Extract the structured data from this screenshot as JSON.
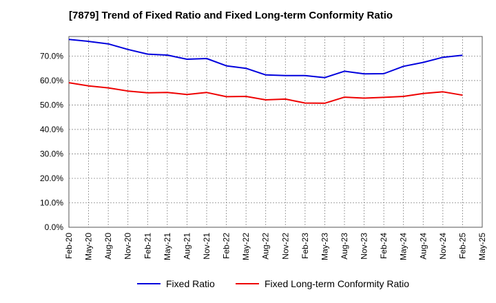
{
  "chart_data": {
    "type": "line",
    "title": "[7879]  Trend of Fixed Ratio and Fixed Long-term Conformity Ratio",
    "xlabel": "",
    "ylabel": "",
    "x": [
      "Feb-20",
      "May-20",
      "Aug-20",
      "Nov-20",
      "Feb-21",
      "May-21",
      "Aug-21",
      "Nov-21",
      "Feb-22",
      "May-22",
      "Aug-22",
      "Nov-22",
      "Feb-23",
      "May-23",
      "Aug-23",
      "Nov-23",
      "Feb-24",
      "May-24",
      "Aug-24",
      "Nov-24",
      "Feb-25"
    ],
    "x_ticks": [
      "Feb-20",
      "May-20",
      "Aug-20",
      "Nov-20",
      "Feb-21",
      "May-21",
      "Aug-21",
      "Nov-21",
      "Feb-22",
      "May-22",
      "Aug-22",
      "Nov-22",
      "Feb-23",
      "May-23",
      "Aug-23",
      "Nov-23",
      "Feb-24",
      "May-24",
      "Aug-24",
      "Nov-24",
      "Feb-25",
      "May-25"
    ],
    "y_ticks": [
      "0.0%",
      "10.0%",
      "20.0%",
      "30.0%",
      "40.0%",
      "50.0%",
      "60.0%",
      "70.0%"
    ],
    "ylim": [
      0,
      78
    ],
    "grid": true,
    "legend_position": "bottom",
    "series": [
      {
        "name": "Fixed Ratio",
        "color": "#0000dd",
        "values": [
          76.8,
          76.0,
          75.0,
          72.7,
          70.8,
          70.4,
          68.7,
          69.0,
          66.0,
          65.0,
          62.3,
          62.0,
          62.0,
          61.2,
          63.8,
          62.7,
          62.8,
          65.8,
          67.4,
          69.5,
          70.3
        ]
      },
      {
        "name": "Fixed Long-term Conformity Ratio",
        "color": "#ee0000",
        "values": [
          59.1,
          57.8,
          57.0,
          55.7,
          55.0,
          55.1,
          54.3,
          55.1,
          53.4,
          53.5,
          52.1,
          52.4,
          50.8,
          50.7,
          53.2,
          52.8,
          53.1,
          53.5,
          54.7,
          55.4,
          54.0
        ]
      }
    ]
  }
}
